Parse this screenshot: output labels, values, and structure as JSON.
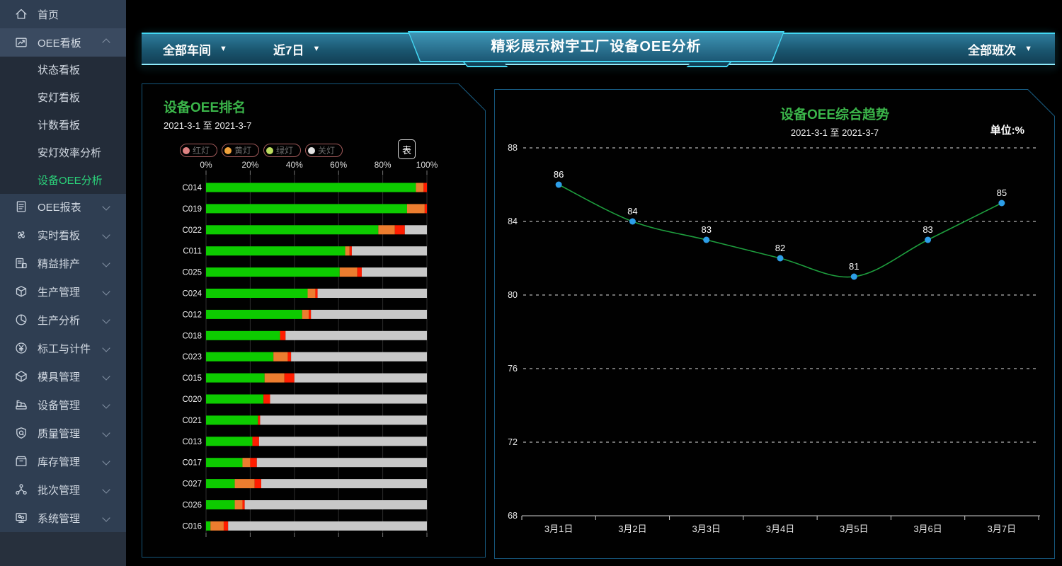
{
  "colors": {
    "accent_cyan": "#43D8F4",
    "panel_border": "#16577C",
    "corner_triangle": "#2D7396",
    "sidebar_active_green": "#2BD57B",
    "title_green": "#3BB54A"
  },
  "sidebar": {
    "items": [
      {
        "label": "首页",
        "icon": "home",
        "type": "top",
        "chevron": null
      },
      {
        "label": "OEE看板",
        "icon": "kanban",
        "type": "top",
        "chevron": "up",
        "expanded": true
      },
      {
        "label": "状态看板",
        "type": "sub"
      },
      {
        "label": "安灯看板",
        "type": "sub"
      },
      {
        "label": "计数看板",
        "type": "sub"
      },
      {
        "label": "安灯效率分析",
        "type": "sub"
      },
      {
        "label": "设备OEE分析",
        "type": "sub",
        "active": true
      },
      {
        "label": "OEE报表",
        "icon": "report",
        "type": "top",
        "chevron": "down"
      },
      {
        "label": "实时看板",
        "icon": "fan",
        "type": "top",
        "chevron": "down"
      },
      {
        "label": "精益排产",
        "icon": "schedule",
        "type": "top",
        "chevron": "down"
      },
      {
        "label": "生产管理",
        "icon": "production",
        "type": "top",
        "chevron": "down"
      },
      {
        "label": "生产分析",
        "icon": "pie",
        "type": "top",
        "chevron": "down"
      },
      {
        "label": "标工与计件",
        "icon": "yen",
        "type": "top",
        "chevron": "down"
      },
      {
        "label": "模具管理",
        "icon": "mold",
        "type": "top",
        "chevron": "down"
      },
      {
        "label": "设备管理",
        "icon": "machine",
        "type": "top",
        "chevron": "down"
      },
      {
        "label": "质量管理",
        "icon": "quality",
        "type": "top",
        "chevron": "down"
      },
      {
        "label": "库存管理",
        "icon": "inventory",
        "type": "top",
        "chevron": "down"
      },
      {
        "label": "批次管理",
        "icon": "batch",
        "type": "top",
        "chevron": "down"
      },
      {
        "label": "系统管理",
        "icon": "system",
        "type": "top",
        "chevron": "down"
      }
    ]
  },
  "header": {
    "title": "精彩展示树宇工厂设备OEE分析",
    "caret": "▼",
    "filters": [
      {
        "label": "全部车间"
      },
      {
        "label": "近7日"
      },
      {
        "label": "全部班次"
      }
    ]
  },
  "chart_data": [
    {
      "type": "bar",
      "orientation": "horizontal",
      "stacked": true,
      "title": "设备OEE排名",
      "subtitle": "2021-3-1 至 2021-3-7",
      "toggle_button": "表",
      "xlim": [
        0,
        100
      ],
      "xticks": [
        "0%",
        "20%",
        "40%",
        "60%",
        "80%",
        "100%"
      ],
      "legend": [
        {
          "name": "红灯",
          "color": "#E08383"
        },
        {
          "name": "黄灯",
          "color": "#F0A23B"
        },
        {
          "name": "绿灯",
          "color": "#BCDC5F"
        },
        {
          "name": "关灯",
          "color": "#E3E3E3"
        }
      ],
      "categories": [
        "C014",
        "C019",
        "C022",
        "C011",
        "C025",
        "C024",
        "C012",
        "C018",
        "C023",
        "C015",
        "C020",
        "C021",
        "C013",
        "C017",
        "C027",
        "C026",
        "C016"
      ],
      "series": [
        {
          "name": "绿灯",
          "color": "#0DCB00",
          "values": [
            95,
            91,
            78,
            63,
            60.5,
            46,
            43.5,
            33.5,
            30.5,
            26.5,
            26,
            23.5,
            21,
            16.5,
            13,
            13,
            2
          ]
        },
        {
          "name": "黄灯",
          "color": "#EC7D2F",
          "values": [
            3.5,
            8,
            7.5,
            2,
            8,
            3.5,
            3,
            0,
            6.5,
            9,
            0,
            0,
            0,
            3.5,
            9,
            3.5,
            6
          ]
        },
        {
          "name": "红灯",
          "color": "#FF1D00",
          "values": [
            1.5,
            1,
            4.5,
            1,
            2,
            1,
            1,
            2.5,
            1.5,
            4.5,
            3,
            1,
            3,
            3,
            3,
            1,
            2
          ]
        },
        {
          "name": "关灯",
          "color": "#C8C8C8",
          "values": [
            0,
            0,
            10,
            34,
            29.5,
            49.5,
            52.5,
            64,
            61.5,
            60,
            71,
            75.5,
            76,
            77,
            75,
            82.5,
            90
          ]
        }
      ]
    },
    {
      "type": "line",
      "smooth": true,
      "title": "设备OEE综合趋势",
      "subtitle": "2021-3-1 至 2021-3-7",
      "unit_label": "单位:%",
      "categories": [
        "3月1日",
        "3月2日",
        "3月3日",
        "3月4日",
        "3月5日",
        "3月6日",
        "3月7日"
      ],
      "values": [
        86,
        84,
        83,
        82,
        81,
        83,
        85
      ],
      "ylim": [
        68,
        88
      ],
      "yticks": [
        88,
        84,
        80,
        76,
        72,
        68
      ],
      "line_color": "#1E9E3E",
      "point_color": "#2D9EE8",
      "grid": "horizontal-dashed",
      "legend_position": "none"
    }
  ]
}
